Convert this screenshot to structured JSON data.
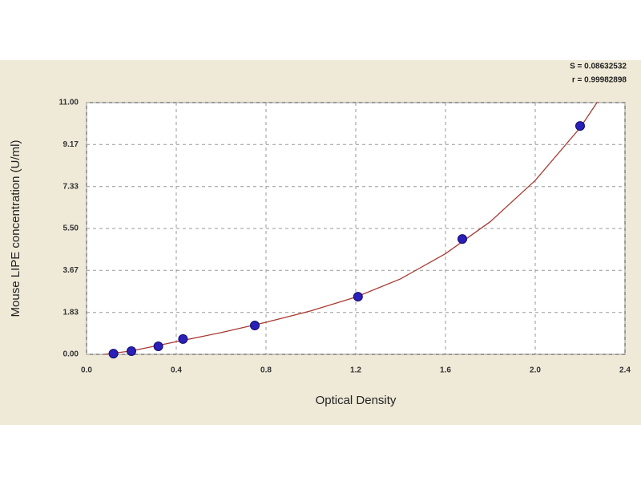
{
  "chart_data": {
    "type": "scatter",
    "x_label": "Optical Density",
    "y_label": "Mouse LIPE concentration (U/ml)",
    "annotations": [
      "S = 0.08632532",
      "r = 0.99982898"
    ],
    "points": {
      "color": "#2a1fb8",
      "x": [
        0.12,
        0.2,
        0.32,
        0.43,
        0.75,
        1.21,
        1.675,
        2.2
      ],
      "values": [
        0.03,
        0.14,
        0.35,
        0.67,
        1.26,
        2.52,
        5.04,
        9.98
      ]
    },
    "fit": {
      "color": "#a83a32",
      "x": [
        0.08,
        0.2,
        0.4,
        0.6,
        0.8,
        1.0,
        1.2,
        1.4,
        1.6,
        1.8,
        2.0,
        2.2,
        2.275
      ],
      "values": [
        0,
        0.15,
        0.55,
        0.95,
        1.4,
        1.9,
        2.5,
        3.3,
        4.4,
        5.8,
        7.6,
        9.9,
        11.0
      ]
    },
    "xlim": [
      0,
      2.4
    ],
    "ylim": [
      0,
      11
    ],
    "xticks": [
      {
        "value": 0,
        "label": "0.0"
      },
      0.4,
      0.8,
      1.2,
      1.6,
      {
        "value": 2,
        "label": "2.0"
      },
      2.4
    ],
    "yticks": [
      {
        "value": 0,
        "label": "0.00"
      },
      1.83,
      3.67,
      {
        "value": 5.5,
        "label": "5.50"
      },
      7.33,
      9.17,
      {
        "value": 11,
        "label": "11.00"
      }
    ],
    "grid": true
  }
}
